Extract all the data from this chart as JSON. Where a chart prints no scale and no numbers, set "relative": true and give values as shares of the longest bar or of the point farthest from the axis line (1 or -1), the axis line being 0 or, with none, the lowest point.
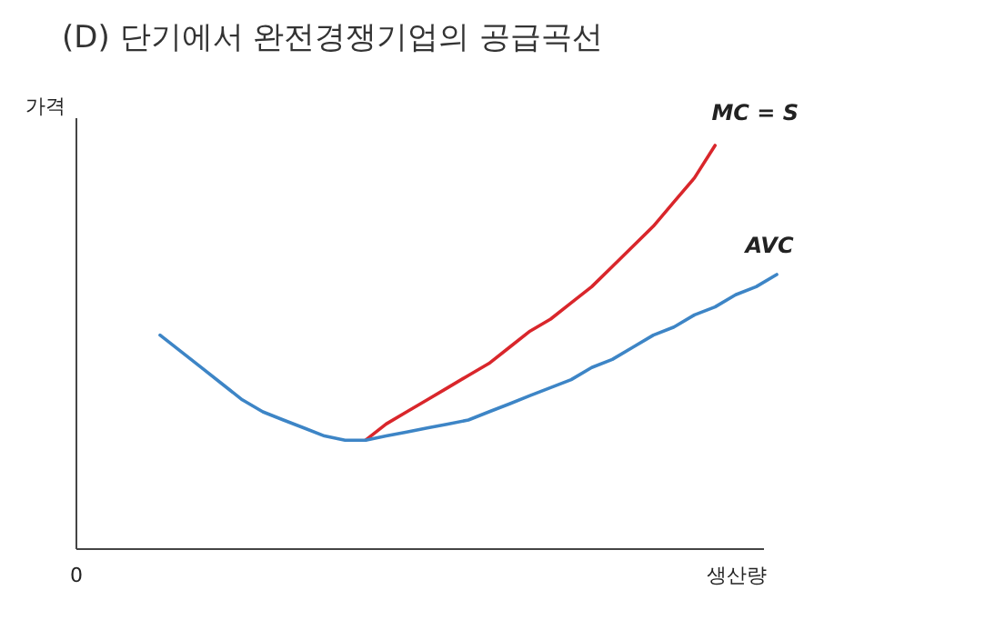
{
  "chart_data": {
    "type": "line",
    "title": "(D) 단기에서 완전경쟁기업의 공급곡선",
    "xlabel": "생산량",
    "ylabel": "가격",
    "relative": true,
    "categories": [
      null,
      null,
      null,
      null,
      null,
      null,
      null,
      null,
      null,
      null,
      null,
      null,
      null,
      null,
      null,
      null,
      null,
      null,
      null,
      null,
      null,
      null,
      null,
      null,
      null,
      null,
      null,
      null,
      null,
      null,
      null
    ],
    "series": [
      {
        "name": "MC = S",
        "color": "#d9262b",
        "values": [
          null,
          null,
          null,
          null,
          null,
          null,
          null,
          null,
          null,
          null,
          0.27,
          0.31,
          0.34,
          0.37,
          0.4,
          0.43,
          0.46,
          0.5,
          0.54,
          0.57,
          0.61,
          0.65,
          0.7,
          0.75,
          0.8,
          0.86,
          0.92,
          1,
          null,
          null,
          null
        ]
      },
      {
        "name": "AVC",
        "color": "#3d85c6",
        "values": [
          0.53,
          0.49,
          0.45,
          0.41,
          0.37,
          0.34,
          0.32,
          0.3,
          0.28,
          0.27,
          0.27,
          0.28,
          0.29,
          0.3,
          0.31,
          0.32,
          0.34,
          0.36,
          0.38,
          0.4,
          0.42,
          0.45,
          0.47,
          0.5,
          0.53,
          0.55,
          0.58,
          0.6,
          0.63,
          0.65,
          0.68
        ]
      }
    ],
    "annotations": [
      "0"
    ]
  }
}
